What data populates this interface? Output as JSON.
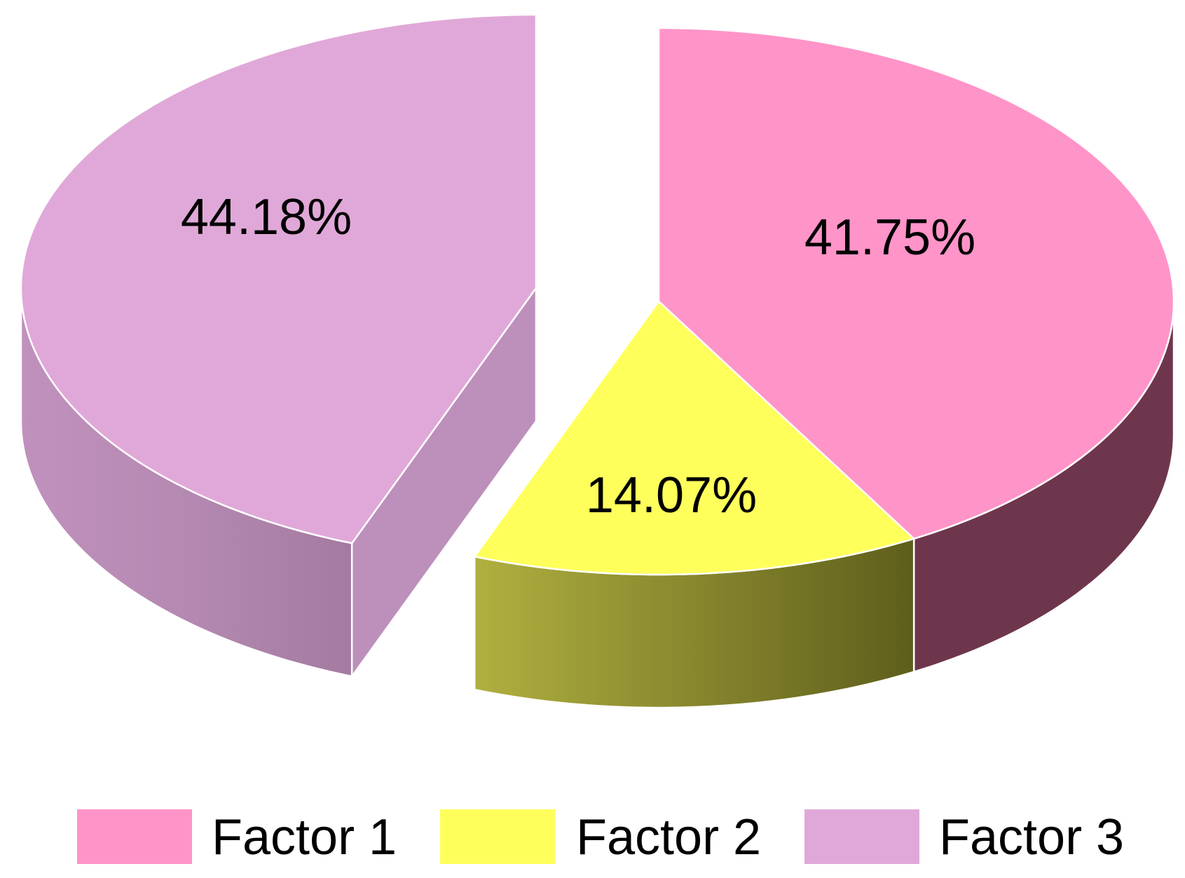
{
  "chart_data": {
    "type": "pie",
    "style": "3d-exploded",
    "categories": [
      "Factor 1",
      "Factor 2",
      "Factor 3"
    ],
    "values": [
      41.75,
      14.07,
      44.18
    ],
    "value_labels": [
      "41.75%",
      "14.07%",
      "44.18%"
    ],
    "colors": [
      "#ff94c8",
      "#ffff5c",
      "#e0a8d8"
    ],
    "side_colors": [
      "#6e364c",
      "#8a8a2c",
      "#bd8fbb"
    ],
    "title": "",
    "legend": {
      "placement": "bottom",
      "items": [
        {
          "label": "Factor 1",
          "color": "#ff94c8"
        },
        {
          "label": "Factor 2",
          "color": "#ffff5c"
        },
        {
          "label": "Factor 3",
          "color": "#e0a8d8"
        }
      ]
    }
  }
}
